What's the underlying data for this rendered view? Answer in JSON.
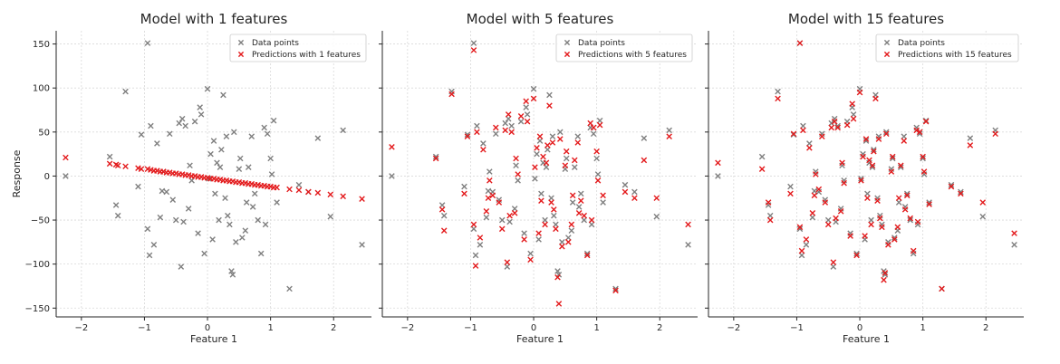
{
  "colors": {
    "data": "#7f7f7f",
    "pred": "#e31a1c",
    "grid": "#d9d9d9"
  },
  "chart_data": [
    {
      "type": "scatter",
      "title": "Model with 1 features",
      "xlabel": "Feature 1",
      "ylabel": "Response",
      "xlim": [
        -2.4,
        2.6
      ],
      "ylim": [
        -160,
        165
      ],
      "xticks": [
        -2,
        -1,
        0,
        1,
        2
      ],
      "yticks": [
        -150,
        -100,
        -50,
        0,
        50,
        100,
        150
      ],
      "grid": true,
      "legend_position": "top-right",
      "series": [
        {
          "name": "Data points",
          "x": [
            -2.25,
            -1.55,
            -1.45,
            -1.42,
            -1.3,
            -1.1,
            -1.05,
            -0.95,
            -0.95,
            -0.92,
            -0.9,
            -0.85,
            -0.8,
            -0.75,
            -0.72,
            -0.7,
            -0.65,
            -0.6,
            -0.55,
            -0.5,
            -0.45,
            -0.42,
            -0.4,
            -0.38,
            -0.35,
            -0.3,
            -0.28,
            -0.25,
            -0.2,
            -0.15,
            -0.12,
            -0.1,
            -0.05,
            0.0,
            0.02,
            0.05,
            0.08,
            0.1,
            0.12,
            0.15,
            0.18,
            0.2,
            0.22,
            0.25,
            0.28,
            0.3,
            0.32,
            0.35,
            0.38,
            0.4,
            0.42,
            0.45,
            0.5,
            0.52,
            0.55,
            0.6,
            0.62,
            0.65,
            0.7,
            0.72,
            0.75,
            0.8,
            0.85,
            0.9,
            0.92,
            0.95,
            1.0,
            1.02,
            1.05,
            1.1,
            1.3,
            1.45,
            1.6,
            1.75,
            1.95,
            2.15,
            2.45
          ],
          "y": [
            0,
            22,
            -33,
            -45,
            96,
            -12,
            47,
            151,
            -60,
            -90,
            57,
            -78,
            37,
            -47,
            -17,
            5,
            -18,
            48,
            -27,
            -50,
            60,
            -103,
            65,
            -52,
            57,
            -37,
            12,
            -5,
            62,
            -65,
            78,
            70,
            -88,
            99,
            -3,
            25,
            -72,
            40,
            -20,
            15,
            -50,
            10,
            30,
            92,
            -25,
            45,
            -45,
            -55,
            -108,
            -112,
            50,
            -75,
            8,
            20,
            -70,
            -62,
            -30,
            10,
            45,
            -35,
            -20,
            -50,
            -88,
            55,
            -55,
            48,
            20,
            2,
            63,
            -30,
            -128,
            -10,
            -18,
            43,
            -46,
            52,
            -78
          ]
        },
        {
          "name": "Predictions with 1 features",
          "x": [
            -2.25,
            -1.55,
            -1.45,
            -1.42,
            -1.3,
            -1.1,
            -1.05,
            -0.95,
            -0.9,
            -0.85,
            -0.8,
            -0.75,
            -0.7,
            -0.65,
            -0.6,
            -0.55,
            -0.5,
            -0.45,
            -0.4,
            -0.35,
            -0.3,
            -0.25,
            -0.2,
            -0.15,
            -0.1,
            -0.05,
            0.0,
            0.05,
            0.1,
            0.15,
            0.2,
            0.25,
            0.3,
            0.35,
            0.4,
            0.45,
            0.5,
            0.55,
            0.6,
            0.65,
            0.7,
            0.75,
            0.8,
            0.85,
            0.9,
            0.95,
            1.0,
            1.05,
            1.1,
            1.3,
            1.45,
            1.6,
            1.75,
            1.95,
            2.15,
            2.45
          ],
          "y": [
            21,
            14,
            13,
            12,
            11,
            9,
            8,
            8,
            7,
            6,
            6,
            5,
            5,
            4,
            4,
            3,
            3,
            2,
            2,
            1,
            1,
            0,
            0,
            -1,
            -1,
            -2,
            -2,
            -3,
            -3,
            -4,
            -4,
            -5,
            -5,
            -6,
            -6,
            -7,
            -7,
            -8,
            -8,
            -9,
            -9,
            -10,
            -10,
            -11,
            -11,
            -12,
            -12,
            -13,
            -13,
            -15,
            -16,
            -18,
            -19,
            -21,
            -23,
            -26
          ]
        }
      ]
    },
    {
      "type": "scatter",
      "title": "Model with 5 features",
      "xlabel": "Feature 1",
      "ylabel": "",
      "xlim": [
        -2.4,
        2.6
      ],
      "ylim": [
        -160,
        165
      ],
      "xticks": [
        -2,
        -1,
        0,
        1,
        2
      ],
      "yticks": [
        -150,
        -100,
        -50,
        0,
        50,
        100,
        150
      ],
      "grid": true,
      "legend_position": "top-right",
      "series": [
        {
          "name": "Data points",
          "x": [
            -2.25,
            -1.55,
            -1.45,
            -1.42,
            -1.3,
            -1.1,
            -1.05,
            -0.95,
            -0.95,
            -0.92,
            -0.9,
            -0.85,
            -0.8,
            -0.75,
            -0.72,
            -0.7,
            -0.65,
            -0.6,
            -0.55,
            -0.5,
            -0.45,
            -0.42,
            -0.4,
            -0.38,
            -0.35,
            -0.3,
            -0.28,
            -0.25,
            -0.2,
            -0.15,
            -0.12,
            -0.1,
            -0.05,
            0.0,
            0.02,
            0.05,
            0.08,
            0.1,
            0.12,
            0.15,
            0.18,
            0.2,
            0.22,
            0.25,
            0.28,
            0.3,
            0.32,
            0.35,
            0.38,
            0.4,
            0.42,
            0.45,
            0.5,
            0.52,
            0.55,
            0.6,
            0.62,
            0.65,
            0.7,
            0.72,
            0.75,
            0.8,
            0.85,
            0.9,
            0.92,
            0.95,
            1.0,
            1.02,
            1.05,
            1.1,
            1.3,
            1.45,
            1.6,
            1.75,
            1.95,
            2.15,
            2.45
          ],
          "y": [
            0,
            22,
            -33,
            -45,
            96,
            -12,
            47,
            151,
            -60,
            -90,
            57,
            -78,
            37,
            -47,
            -17,
            5,
            -18,
            48,
            -27,
            -50,
            60,
            -103,
            65,
            -52,
            57,
            -37,
            12,
            -5,
            62,
            -65,
            78,
            70,
            -88,
            99,
            -3,
            25,
            -72,
            40,
            -20,
            15,
            -50,
            10,
            30,
            92,
            -25,
            45,
            -45,
            -55,
            -108,
            -112,
            50,
            -75,
            8,
            20,
            -70,
            -62,
            -30,
            10,
            45,
            -35,
            -20,
            -50,
            -88,
            55,
            -55,
            48,
            20,
            2,
            63,
            -30,
            -128,
            -10,
            -18,
            43,
            -46,
            52,
            -78
          ]
        },
        {
          "name": "Predictions with 5 features",
          "x": [
            -2.25,
            -1.55,
            -1.45,
            -1.42,
            -1.3,
            -1.1,
            -1.05,
            -0.95,
            -0.95,
            -0.92,
            -0.9,
            -0.85,
            -0.8,
            -0.75,
            -0.72,
            -0.7,
            -0.65,
            -0.6,
            -0.55,
            -0.5,
            -0.45,
            -0.42,
            -0.4,
            -0.38,
            -0.35,
            -0.3,
            -0.28,
            -0.25,
            -0.2,
            -0.15,
            -0.12,
            -0.1,
            -0.05,
            0.0,
            0.02,
            0.05,
            0.08,
            0.1,
            0.12,
            0.15,
            0.18,
            0.2,
            0.22,
            0.25,
            0.28,
            0.3,
            0.32,
            0.35,
            0.38,
            0.4,
            0.42,
            0.45,
            0.5,
            0.52,
            0.55,
            0.6,
            0.62,
            0.65,
            0.7,
            0.72,
            0.75,
            0.8,
            0.85,
            0.9,
            0.92,
            0.95,
            1.0,
            1.02,
            1.05,
            1.1,
            1.3,
            1.45,
            1.6,
            1.75,
            1.95,
            2.15,
            2.45
          ],
          "y": [
            33,
            20,
            -38,
            -62,
            93,
            -20,
            45,
            143,
            -55,
            -102,
            50,
            -70,
            30,
            -40,
            -25,
            -5,
            -22,
            55,
            -30,
            -60,
            52,
            -98,
            70,
            -45,
            50,
            -42,
            20,
            2,
            68,
            -72,
            85,
            62,
            -95,
            88,
            10,
            32,
            -65,
            45,
            -28,
            22,
            -55,
            15,
            35,
            80,
            -30,
            38,
            -38,
            -60,
            -115,
            -145,
            42,
            -80,
            12,
            28,
            -75,
            -55,
            -22,
            18,
            38,
            -42,
            -28,
            -45,
            -90,
            60,
            -50,
            55,
            28,
            -5,
            58,
            -22,
            -130,
            -18,
            -25,
            18,
            -25,
            45,
            -55
          ]
        }
      ]
    },
    {
      "type": "scatter",
      "title": "Model with 15 features",
      "xlabel": "Feature 1",
      "ylabel": "",
      "xlim": [
        -2.4,
        2.6
      ],
      "ylim": [
        -160,
        165
      ],
      "xticks": [
        -2,
        -1,
        0,
        1,
        2
      ],
      "yticks": [
        -150,
        -100,
        -50,
        0,
        50,
        100,
        150
      ],
      "grid": true,
      "legend_position": "top-right",
      "series": [
        {
          "name": "Data points",
          "x": [
            -2.25,
            -1.55,
            -1.45,
            -1.42,
            -1.3,
            -1.1,
            -1.05,
            -0.95,
            -0.95,
            -0.92,
            -0.9,
            -0.85,
            -0.8,
            -0.75,
            -0.72,
            -0.7,
            -0.65,
            -0.6,
            -0.55,
            -0.5,
            -0.45,
            -0.42,
            -0.4,
            -0.38,
            -0.35,
            -0.3,
            -0.28,
            -0.25,
            -0.2,
            -0.15,
            -0.12,
            -0.1,
            -0.05,
            0.0,
            0.02,
            0.05,
            0.08,
            0.1,
            0.12,
            0.15,
            0.18,
            0.2,
            0.22,
            0.25,
            0.28,
            0.3,
            0.32,
            0.35,
            0.38,
            0.4,
            0.42,
            0.45,
            0.5,
            0.52,
            0.55,
            0.6,
            0.62,
            0.65,
            0.7,
            0.72,
            0.75,
            0.8,
            0.85,
            0.9,
            0.92,
            0.95,
            1.0,
            1.02,
            1.05,
            1.1,
            1.3,
            1.45,
            1.6,
            1.75,
            1.95,
            2.15,
            2.45
          ],
          "y": [
            0,
            22,
            -33,
            -45,
            96,
            -12,
            47,
            151,
            -60,
            -90,
            57,
            -78,
            37,
            -47,
            -17,
            5,
            -18,
            48,
            -27,
            -50,
            60,
            -103,
            65,
            -52,
            57,
            -37,
            12,
            -5,
            62,
            -65,
            78,
            70,
            -88,
            99,
            -3,
            25,
            -72,
            40,
            -20,
            15,
            -50,
            10,
            30,
            92,
            -25,
            45,
            -45,
            -55,
            -108,
            -112,
            50,
            -75,
            8,
            20,
            -70,
            -62,
            -30,
            10,
            45,
            -35,
            -20,
            -50,
            -88,
            55,
            -55,
            48,
            20,
            2,
            63,
            -30,
            -128,
            -10,
            -18,
            43,
            -46,
            52,
            -78
          ]
        },
        {
          "name": "Predictions with 15 features",
          "x": [
            -2.25,
            -1.55,
            -1.45,
            -1.42,
            -1.3,
            -1.1,
            -1.05,
            -0.95,
            -0.95,
            -0.92,
            -0.9,
            -0.85,
            -0.8,
            -0.75,
            -0.72,
            -0.7,
            -0.65,
            -0.6,
            -0.55,
            -0.5,
            -0.45,
            -0.42,
            -0.4,
            -0.38,
            -0.35,
            -0.3,
            -0.28,
            -0.25,
            -0.2,
            -0.15,
            -0.12,
            -0.1,
            -0.05,
            0.0,
            0.02,
            0.05,
            0.08,
            0.1,
            0.12,
            0.15,
            0.18,
            0.2,
            0.22,
            0.25,
            0.28,
            0.3,
            0.32,
            0.35,
            0.38,
            0.4,
            0.42,
            0.45,
            0.5,
            0.52,
            0.55,
            0.6,
            0.62,
            0.65,
            0.7,
            0.72,
            0.75,
            0.8,
            0.85,
            0.9,
            0.92,
            0.95,
            1.0,
            1.02,
            1.05,
            1.1,
            1.3,
            1.45,
            1.6,
            1.75,
            1.95,
            2.15,
            2.45
          ],
          "y": [
            15,
            8,
            -30,
            -50,
            88,
            -20,
            48,
            151,
            -58,
            -85,
            52,
            -72,
            32,
            -42,
            -22,
            2,
            -15,
            45,
            -30,
            -55,
            55,
            -98,
            62,
            -48,
            55,
            -40,
            15,
            -8,
            58,
            -68,
            82,
            65,
            -90,
            95,
            -5,
            22,
            -68,
            42,
            -25,
            18,
            -55,
            12,
            28,
            88,
            -28,
            42,
            -48,
            -58,
            -118,
            -110,
            48,
            -78,
            5,
            22,
            -72,
            -58,
            -25,
            12,
            40,
            -38,
            -22,
            -48,
            -85,
            52,
            -52,
            50,
            22,
            5,
            62,
            -32,
            -128,
            -12,
            -20,
            35,
            -30,
            48,
            -65
          ]
        }
      ]
    }
  ]
}
